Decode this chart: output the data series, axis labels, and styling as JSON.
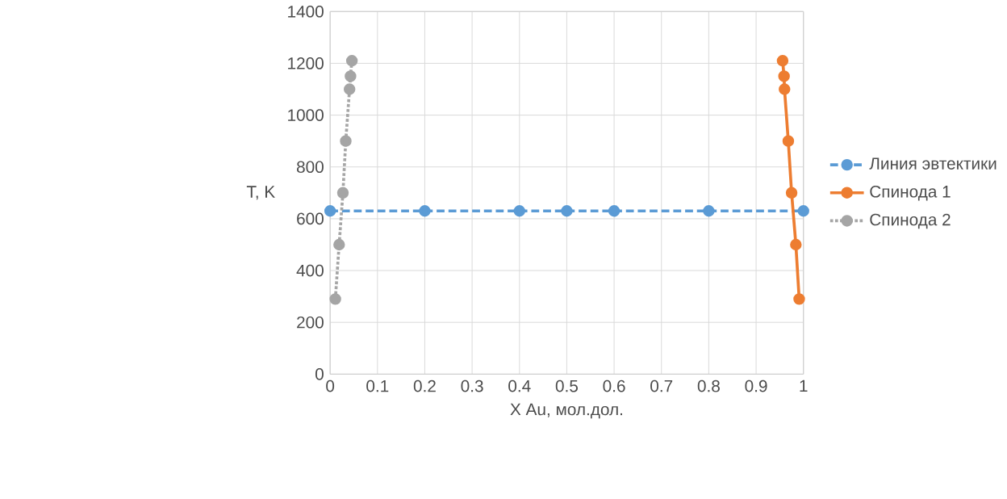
{
  "chart_data": {
    "type": "line",
    "xlabel": "X Au, мол.дол.",
    "ylabel": "T, K",
    "xlim": [
      0,
      1
    ],
    "ylim": [
      0,
      1400
    ],
    "xticks": [
      0,
      0.1,
      0.2,
      0.3,
      0.4,
      0.5,
      0.6,
      0.7,
      0.8,
      0.9,
      1
    ],
    "yticks": [
      0,
      200,
      400,
      600,
      800,
      1000,
      1200,
      1400
    ],
    "grid": true,
    "legend": "right",
    "marker": "circle",
    "series": [
      {
        "name": "Линия эвтектики",
        "color": "#5b9bd5",
        "line_style": "dashed",
        "x": [
          0,
          0.2,
          0.4,
          0.5,
          0.6,
          0.8,
          1
        ],
        "values": [
          630,
          630,
          630,
          630,
          630,
          630,
          630
        ]
      },
      {
        "name": "Спинода 1",
        "color": "#ed7d31",
        "line_style": "solid",
        "x": [
          0.991,
          0.984,
          0.975,
          0.968,
          0.96,
          0.959,
          0.956
        ],
        "values": [
          290,
          500,
          700,
          900,
          1100,
          1150,
          1210
        ]
      },
      {
        "name": "Спинода 2",
        "color": "#a5a5a5",
        "line_style": "dotted",
        "x": [
          0.011,
          0.019,
          0.027,
          0.033,
          0.041,
          0.043,
          0.046
        ],
        "values": [
          290,
          500,
          700,
          900,
          1100,
          1150,
          1210
        ]
      }
    ]
  }
}
